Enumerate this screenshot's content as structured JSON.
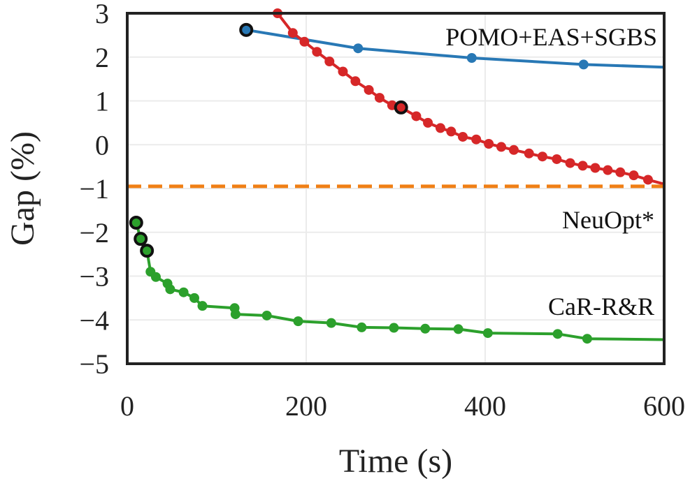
{
  "chart_data": {
    "type": "line",
    "title": "",
    "xlabel": "Time (s)",
    "ylabel": "Gap (%)",
    "xlim": [
      0,
      600
    ],
    "ylim": [
      -5,
      3
    ],
    "xticks": [
      0,
      200,
      400,
      600
    ],
    "yticks": [
      3,
      2,
      1,
      0,
      -1,
      -2,
      -3,
      -4,
      -5
    ],
    "xtick_labels": [
      "0",
      "200",
      "400",
      "600"
    ],
    "ytick_labels": [
      "3",
      "2",
      "1",
      "0",
      "−1",
      "−2",
      "−3",
      "−4",
      "−5"
    ],
    "grid": true,
    "series": [
      {
        "name": "POMO+EAS+SGBS",
        "color": "#2878b5",
        "style": "solid",
        "marker": "circle",
        "points": [
          [
            133,
            2.62
          ],
          [
            258,
            2.2
          ],
          [
            385,
            1.98
          ],
          [
            510,
            1.83
          ],
          [
            600,
            1.77
          ]
        ],
        "highlight": [
          [
            133,
            2.62
          ]
        ]
      },
      {
        "name": "",
        "color": "#d62728",
        "style": "solid",
        "marker": "circle",
        "points": [
          [
            168,
            3.0
          ],
          [
            185,
            2.55
          ],
          [
            198,
            2.35
          ],
          [
            212,
            2.12
          ],
          [
            226,
            1.9
          ],
          [
            241,
            1.67
          ],
          [
            255,
            1.45
          ],
          [
            270,
            1.25
          ],
          [
            282,
            1.07
          ],
          [
            296,
            0.9
          ],
          [
            306,
            0.85
          ],
          [
            323,
            0.65
          ],
          [
            336,
            0.5
          ],
          [
            350,
            0.38
          ],
          [
            362,
            0.3
          ],
          [
            375,
            0.18
          ],
          [
            390,
            0.12
          ],
          [
            404,
            0.02
          ],
          [
            418,
            -0.05
          ],
          [
            432,
            -0.12
          ],
          [
            449,
            -0.2
          ],
          [
            464,
            -0.27
          ],
          [
            480,
            -0.33
          ],
          [
            495,
            -0.42
          ],
          [
            509,
            -0.48
          ],
          [
            523,
            -0.53
          ],
          [
            537,
            -0.58
          ],
          [
            551,
            -0.63
          ],
          [
            566,
            -0.7
          ],
          [
            582,
            -0.8
          ],
          [
            600,
            -0.9
          ]
        ],
        "highlight": [
          [
            306,
            0.85
          ]
        ]
      },
      {
        "name": "NeuOpt*",
        "color": "#f07f15",
        "style": "dashed",
        "marker": "none",
        "points": [
          [
            0,
            -0.95
          ],
          [
            600,
            -0.95
          ]
        ],
        "highlight": []
      },
      {
        "name": "CaR-R&R",
        "color": "#2ca02c",
        "style": "solid",
        "marker": "circle",
        "points": [
          [
            10,
            -1.78
          ],
          [
            15,
            -2.15
          ],
          [
            22,
            -2.42
          ],
          [
            26,
            -2.9
          ],
          [
            32,
            -3.02
          ],
          [
            45,
            -3.17
          ],
          [
            48,
            -3.3
          ],
          [
            63,
            -3.37
          ],
          [
            75,
            -3.5
          ],
          [
            84,
            -3.68
          ],
          [
            120,
            -3.73
          ],
          [
            121,
            -3.87
          ],
          [
            156,
            -3.9
          ],
          [
            191,
            -4.03
          ],
          [
            228,
            -4.07
          ],
          [
            262,
            -4.17
          ],
          [
            298,
            -4.18
          ],
          [
            333,
            -4.2
          ],
          [
            370,
            -4.21
          ],
          [
            403,
            -4.3
          ],
          [
            481,
            -4.32
          ],
          [
            514,
            -4.43
          ],
          [
            600,
            -4.45
          ]
        ],
        "highlight": [
          [
            10,
            -1.78
          ],
          [
            15,
            -2.15
          ],
          [
            22,
            -2.42
          ]
        ]
      }
    ],
    "annotations": [
      "POMO+EAS+SGBS",
      "NeuOpt*",
      "CaR-R&R"
    ]
  }
}
